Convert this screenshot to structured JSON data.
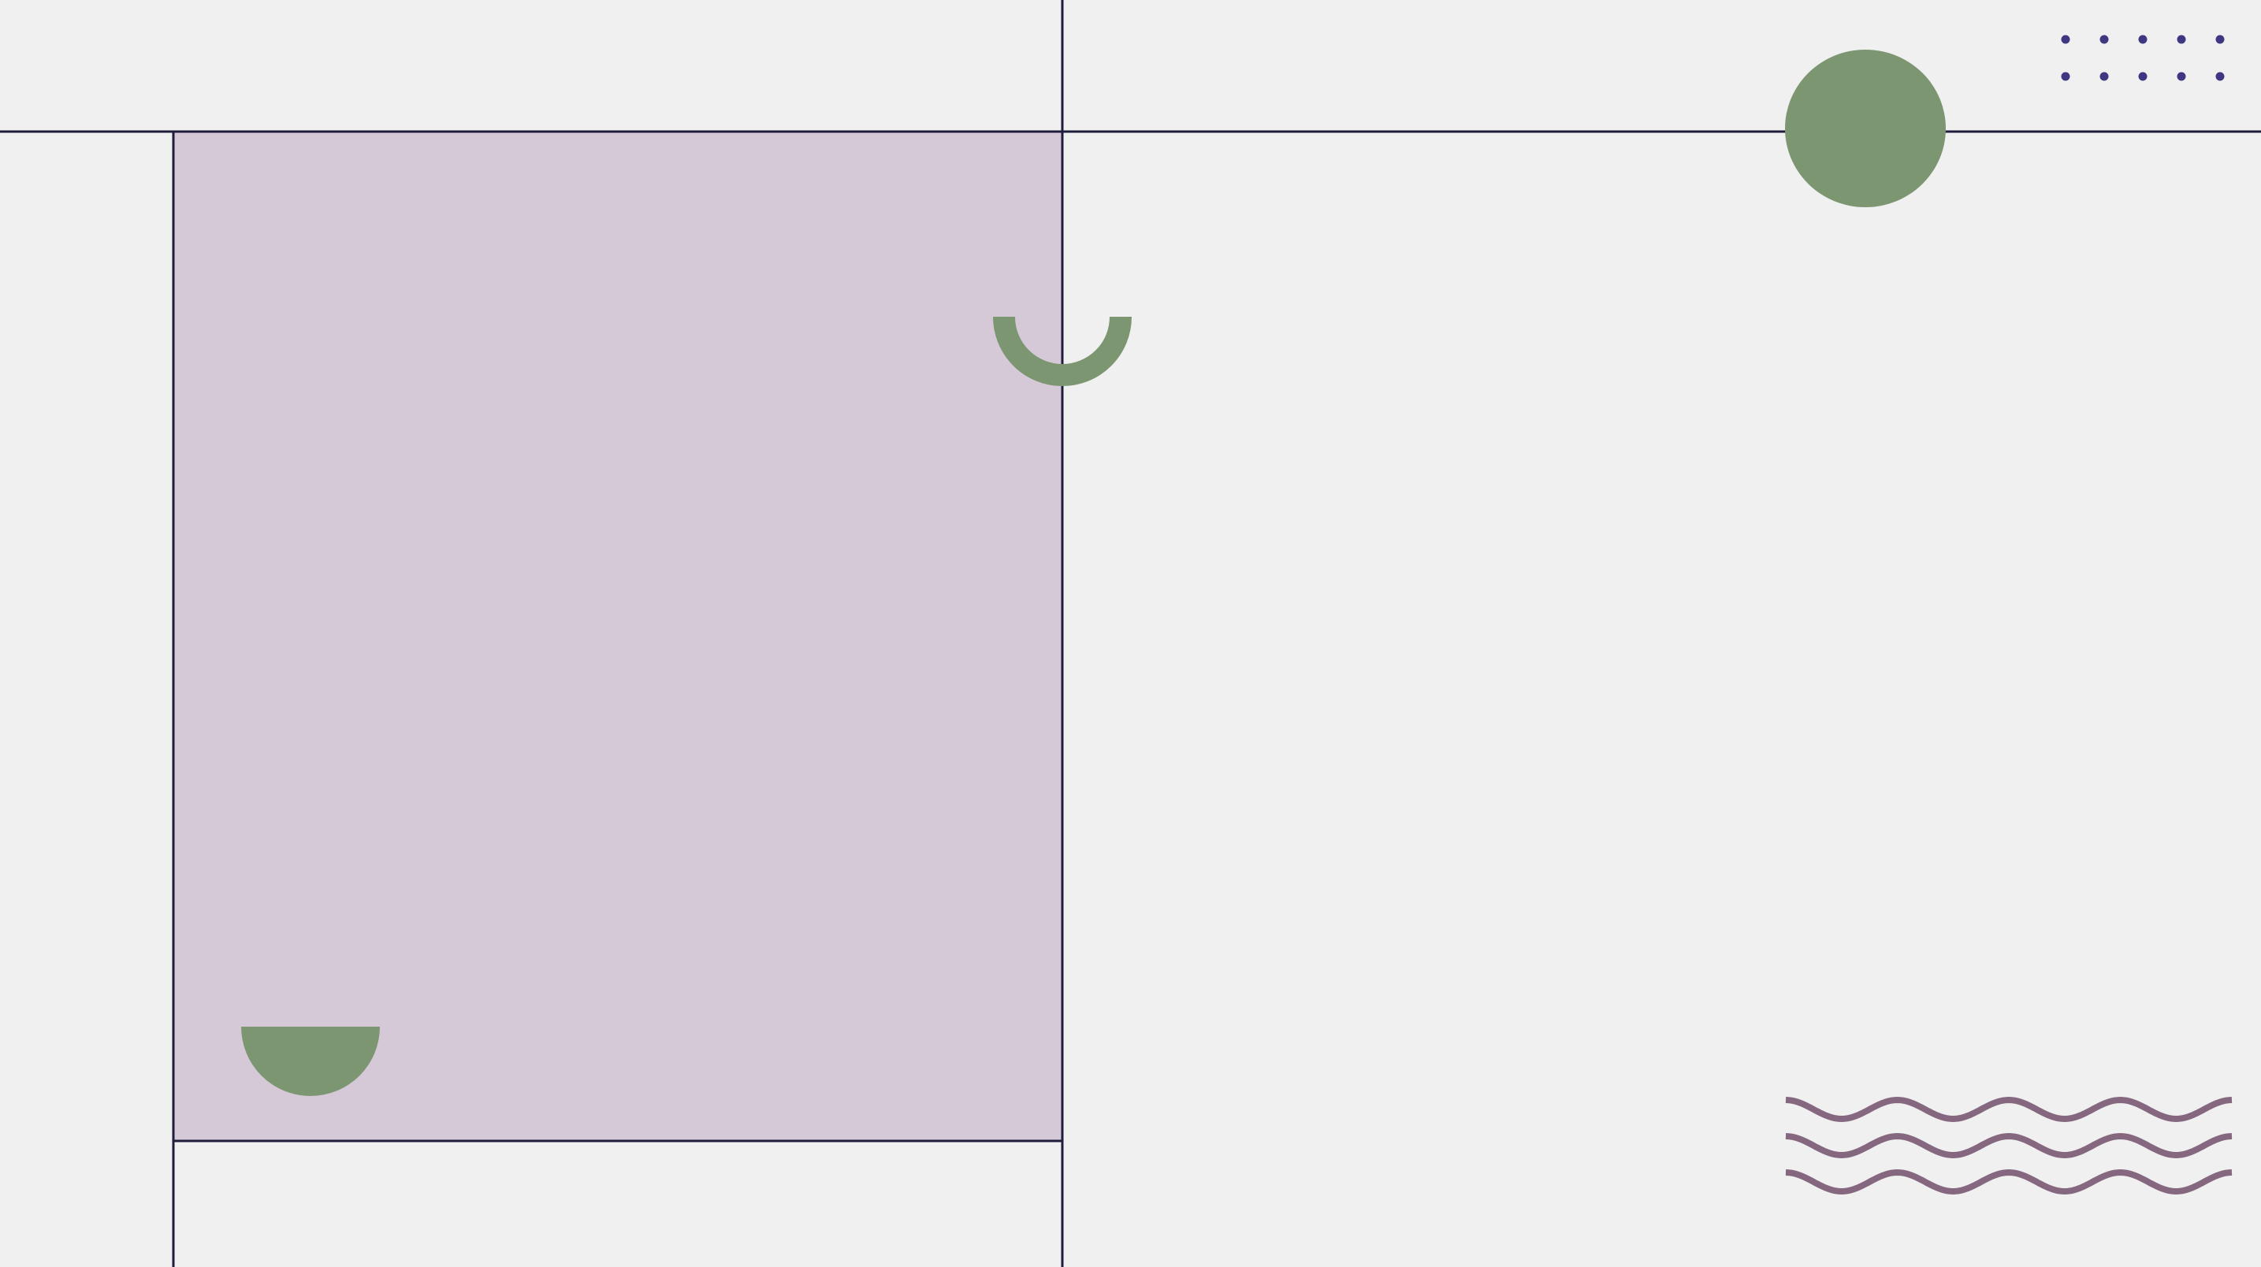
{
  "colors": {
    "background": "#f0f0f0",
    "panel_fill": "#d5c9d7",
    "line": "#1f1d3d",
    "accent_green": "#7d9672",
    "dots": "#3f3781",
    "waves": "#85687f"
  },
  "shapes": {
    "circle": "filled-circle",
    "arc": "semicircle-arc",
    "bowl": "half-disc",
    "dots": "dot-grid",
    "waves": "wavy-lines"
  },
  "dot_grid": {
    "rows": 2,
    "columns": 5
  },
  "wave_lines": {
    "count": 3,
    "periods": 4
  }
}
